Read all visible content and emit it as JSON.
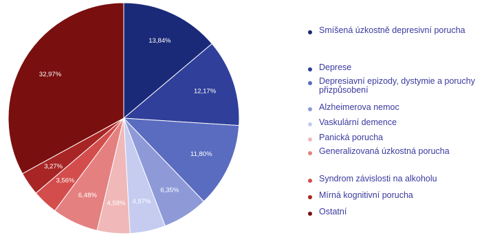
{
  "chart_data": {
    "type": "pie",
    "title": "",
    "legend_position": "right",
    "slices": [
      {
        "label": "Smíšená úzkostně depresivní porucha",
        "value": 13.84,
        "value_label": "13,84%",
        "color": "#1b2a78"
      },
      {
        "label": "Deprese",
        "value": 12.17,
        "value_label": "12,17%",
        "color": "#2f3f9a"
      },
      {
        "label": "Depresiavní epizody, dystymie a poruchy přizpůsobení",
        "value": 11.8,
        "value_label": "11,80%",
        "color": "#5a6cc0"
      },
      {
        "label": "Alzheimerova nemoc",
        "value": 6.35,
        "value_label": "6,35%",
        "color": "#8e9ad8"
      },
      {
        "label": "Vaskulární demence",
        "value": 4.97,
        "value_label": "4,97%",
        "color": "#c5ccf0"
      },
      {
        "label": "Panická porucha",
        "value": 4.58,
        "value_label": "4,58%",
        "color": "#f0b8b8"
      },
      {
        "label": "Generalizovaná úzkostná porucha",
        "value": 6.48,
        "value_label": "6,48%",
        "color": "#e58080"
      },
      {
        "label": "Syndrom závislosti na alkoholu",
        "value": 3.56,
        "value_label": "3,56%",
        "color": "#d44d4d"
      },
      {
        "label": "Mírná kognitivní porucha",
        "value": 3.27,
        "value_label": "3,27%",
        "color": "#a82525"
      },
      {
        "label": "Ostatní",
        "value": 32.97,
        "value_label": "32,97%",
        "color": "#7a0f0f"
      }
    ]
  }
}
